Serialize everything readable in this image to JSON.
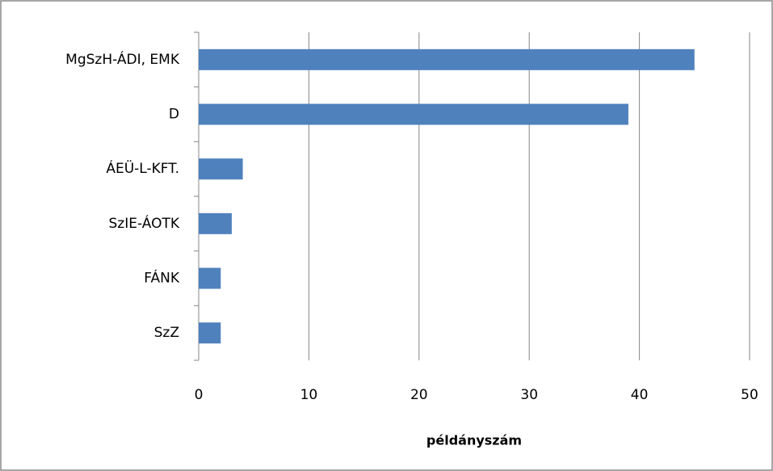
{
  "chart_data": {
    "type": "bar",
    "orientation": "horizontal",
    "categories": [
      "MgSzH-ÁDI, EMK",
      "D",
      "ÁEÜ-L-KFT.",
      "SzIE-ÁOTK",
      "FÁNK",
      "SzZ"
    ],
    "values": [
      45,
      39,
      4,
      3,
      2,
      2
    ],
    "color": "#4f81bd",
    "xlabel": "példányszám",
    "xlim": [
      0,
      50
    ],
    "xticks": [
      0,
      10,
      20,
      30,
      40,
      50
    ],
    "grid": true
  }
}
